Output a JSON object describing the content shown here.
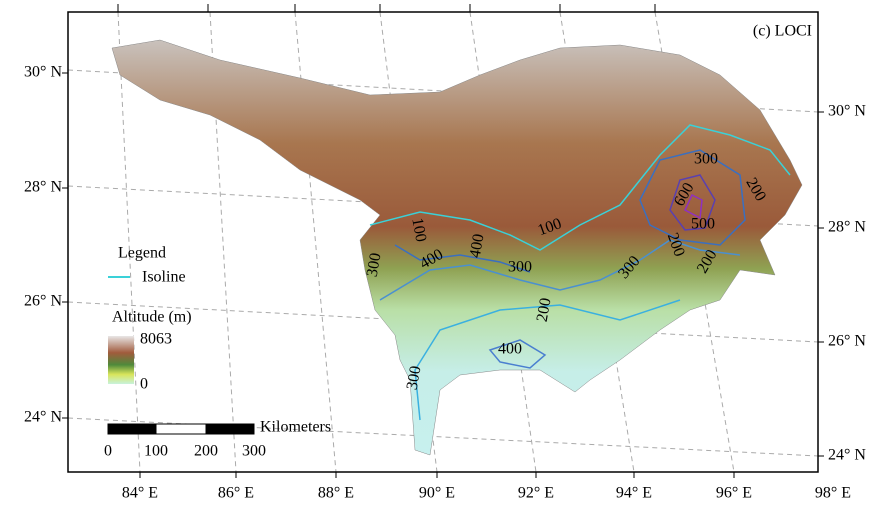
{
  "panel_label": "(c) LOCI",
  "left_lat_labels": [
    "30° N",
    "28° N",
    "26° N",
    "24° N"
  ],
  "right_lat_labels": [
    "30° N",
    "28° N",
    "26° N",
    "24° N"
  ],
  "lon_labels": [
    "84° E",
    "86° E",
    "88° E",
    "90° E",
    "92° E",
    "94° E",
    "96° E",
    "98° E"
  ],
  "legend": {
    "title": "Legend",
    "isoline": "Isoline",
    "altitude_title": "Altitude (m)",
    "altitude_max": "8063",
    "altitude_min": "0"
  },
  "scale_bar": {
    "unit": "Kilometers",
    "ticks": [
      "0",
      "100",
      "200",
      "300"
    ]
  },
  "contour_labels": [
    "300",
    "200",
    "600",
    "500",
    "100",
    "100",
    "400",
    "400",
    "300",
    "300",
    "300",
    "200",
    "200",
    "200",
    "400",
    "300"
  ]
}
